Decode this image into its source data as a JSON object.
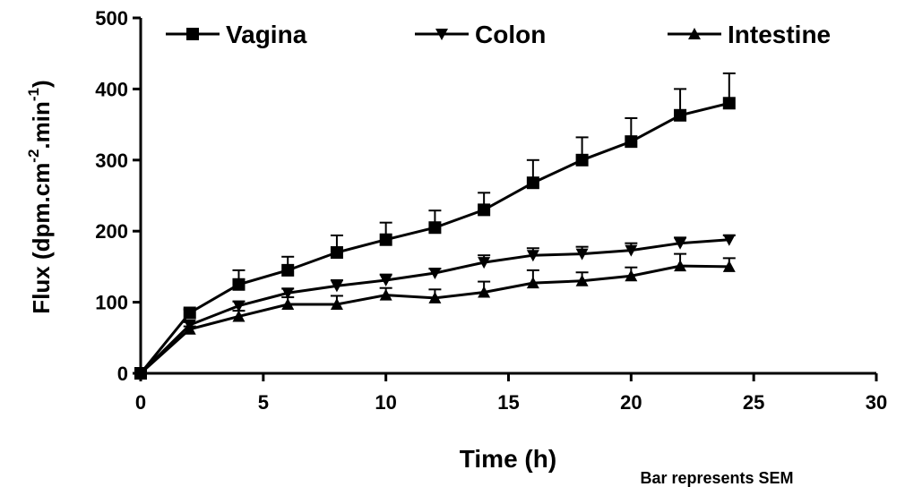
{
  "chart_data": {
    "type": "line",
    "xlabel": "Time (h)",
    "ylabel": [
      "Flux (dpm.cm",
      "-2",
      ".min",
      "-1",
      ")"
    ],
    "annotation": "Bar represents SEM",
    "x": [
      0,
      2,
      4,
      6,
      8,
      10,
      12,
      14,
      16,
      18,
      20,
      22,
      24
    ],
    "series": [
      {
        "name": "Vagina",
        "color": "#000000",
        "marker": "square",
        "values": [
          0,
          85,
          125,
          145,
          170,
          188,
          205,
          230,
          268,
          300,
          326,
          363,
          380
        ],
        "errors": [
          0,
          5,
          20,
          19,
          24,
          24,
          24,
          24,
          32,
          32,
          33,
          37,
          42
        ]
      },
      {
        "name": "Colon",
        "color": "#000000",
        "marker": "triangle-down",
        "values": [
          0,
          68,
          95,
          113,
          123,
          131,
          141,
          156,
          166,
          168,
          173,
          183,
          188
        ],
        "errors": [
          0,
          4,
          6,
          6,
          8,
          8,
          6,
          10,
          10,
          10,
          10,
          8,
          6
        ]
      },
      {
        "name": "Intestine",
        "color": "#000000",
        "marker": "triangle-up",
        "values": [
          0,
          62,
          80,
          97,
          97,
          110,
          106,
          114,
          127,
          130,
          137,
          151,
          150
        ],
        "errors": [
          0,
          4,
          8,
          10,
          12,
          10,
          12,
          15,
          18,
          12,
          12,
          17,
          12
        ]
      }
    ],
    "xlim": [
      0,
      30
    ],
    "xticks": [
      0,
      5,
      10,
      15,
      20,
      25,
      30
    ],
    "ylim": [
      0,
      500
    ],
    "yticks": [
      0,
      100,
      200,
      300,
      400,
      500
    ],
    "legend": "top"
  }
}
